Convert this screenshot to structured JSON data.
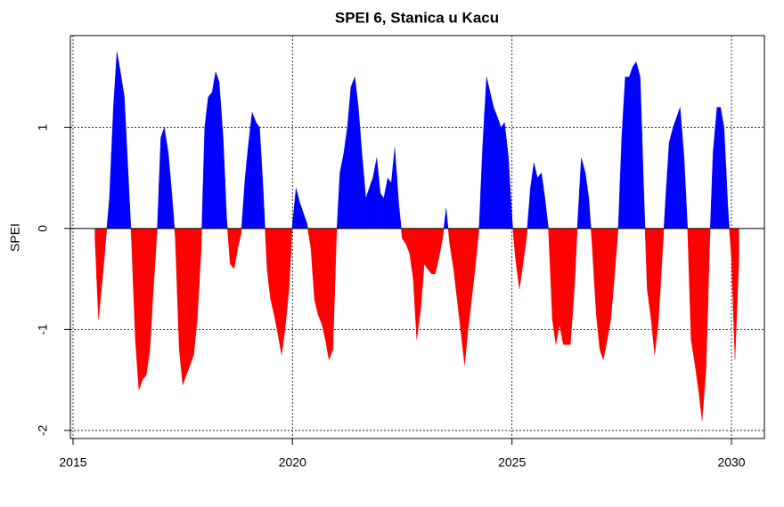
{
  "chart_data": {
    "type": "area",
    "title": "SPEI 6, Stanica u Kacu",
    "y_label": "SPEI",
    "positive_color": "#0000ff",
    "negative_color": "#ff0000",
    "baseline": 0,
    "grid": true,
    "xlim": [
      2014.94,
      2030.75
    ],
    "xticks": [
      2015,
      2020,
      2025,
      2030
    ],
    "ylim": [
      -2.08,
      1.91
    ],
    "yticks": [
      -2,
      -1,
      0,
      1
    ],
    "x": [
      2015.5,
      2015.58,
      2015.67,
      2015.75,
      2015.83,
      2015.92,
      2016.0,
      2016.08,
      2016.17,
      2016.25,
      2016.33,
      2016.42,
      2016.5,
      2016.58,
      2016.67,
      2016.75,
      2016.83,
      2016.92,
      2017.0,
      2017.08,
      2017.17,
      2017.25,
      2017.33,
      2017.42,
      2017.5,
      2017.58,
      2017.67,
      2017.75,
      2017.83,
      2017.92,
      2018.0,
      2018.08,
      2018.17,
      2018.25,
      2018.33,
      2018.42,
      2018.5,
      2018.58,
      2018.67,
      2018.75,
      2018.83,
      2018.92,
      2019.0,
      2019.08,
      2019.17,
      2019.25,
      2019.33,
      2019.42,
      2019.5,
      2019.58,
      2019.67,
      2019.75,
      2019.83,
      2019.92,
      2020.0,
      2020.08,
      2020.17,
      2020.25,
      2020.33,
      2020.42,
      2020.5,
      2020.58,
      2020.67,
      2020.75,
      2020.83,
      2020.92,
      2021.0,
      2021.08,
      2021.17,
      2021.25,
      2021.33,
      2021.42,
      2021.5,
      2021.58,
      2021.67,
      2021.75,
      2021.83,
      2021.92,
      2022.0,
      2022.08,
      2022.17,
      2022.25,
      2022.33,
      2022.42,
      2022.5,
      2022.58,
      2022.67,
      2022.75,
      2022.83,
      2022.92,
      2023.0,
      2023.08,
      2023.17,
      2023.25,
      2023.33,
      2023.42,
      2023.5,
      2023.58,
      2023.67,
      2023.75,
      2023.83,
      2023.92,
      2024.0,
      2024.08,
      2024.17,
      2024.25,
      2024.33,
      2024.42,
      2024.5,
      2024.58,
      2024.67,
      2024.75,
      2024.83,
      2024.92,
      2025.0,
      2025.08,
      2025.17,
      2025.25,
      2025.33,
      2025.42,
      2025.5,
      2025.58,
      2025.67,
      2025.75,
      2025.83,
      2025.92,
      2026.0,
      2026.08,
      2026.17,
      2026.25,
      2026.33,
      2026.42,
      2026.5,
      2026.58,
      2026.67,
      2026.75,
      2026.83,
      2026.92,
      2027.0,
      2027.08,
      2027.17,
      2027.25,
      2027.33,
      2027.42,
      2027.5,
      2027.58,
      2027.67,
      2027.75,
      2027.83,
      2027.92,
      2028.0,
      2028.08,
      2028.17,
      2028.25,
      2028.33,
      2028.42,
      2028.5,
      2028.58,
      2028.67,
      2028.75,
      2028.83,
      2028.92,
      2029.0,
      2029.08,
      2029.17,
      2029.25,
      2029.33,
      2029.42,
      2029.5,
      2029.58,
      2029.67,
      2029.75,
      2029.83,
      2029.92,
      2030.0,
      2030.08,
      2030.17
    ],
    "values": [
      -0.1,
      -0.9,
      -0.5,
      -0.1,
      0.3,
      1.2,
      1.75,
      1.55,
      1.3,
      0.6,
      -0.1,
      -1.1,
      -1.6,
      -1.5,
      -1.45,
      -1.2,
      -0.6,
      0.0,
      0.9,
      1.0,
      0.75,
      0.35,
      -0.1,
      -1.2,
      -1.55,
      -1.45,
      -1.35,
      -1.25,
      -0.9,
      -0.2,
      1.0,
      1.3,
      1.35,
      1.55,
      1.45,
      0.9,
      0.1,
      -0.35,
      -0.4,
      -0.2,
      -0.05,
      0.5,
      0.85,
      1.15,
      1.05,
      1.0,
      0.4,
      -0.4,
      -0.7,
      -0.85,
      -1.05,
      -1.25,
      -1.0,
      -0.6,
      0.05,
      0.4,
      0.25,
      0.15,
      0.05,
      -0.2,
      -0.7,
      -0.85,
      -0.95,
      -1.1,
      -1.3,
      -1.2,
      -0.1,
      0.55,
      0.75,
      1.0,
      1.4,
      1.5,
      1.2,
      0.75,
      0.3,
      0.4,
      0.5,
      0.7,
      0.35,
      0.3,
      0.5,
      0.45,
      0.8,
      0.25,
      -0.1,
      -0.15,
      -0.25,
      -0.5,
      -1.1,
      -0.8,
      -0.35,
      -0.4,
      -0.45,
      -0.45,
      -0.3,
      -0.1,
      0.2,
      -0.15,
      -0.4,
      -0.7,
      -1.0,
      -1.35,
      -1.0,
      -0.7,
      -0.35,
      0.0,
      0.8,
      1.5,
      1.35,
      1.2,
      1.1,
      1.0,
      1.05,
      0.7,
      0.1,
      -0.3,
      -0.6,
      -0.35,
      -0.1,
      0.4,
      0.65,
      0.5,
      0.55,
      0.3,
      0.0,
      -0.9,
      -1.15,
      -0.95,
      -1.15,
      -1.15,
      -1.15,
      -0.6,
      0.1,
      0.7,
      0.55,
      0.3,
      -0.2,
      -0.85,
      -1.2,
      -1.3,
      -1.1,
      -0.9,
      -0.5,
      0.0,
      0.9,
      1.5,
      1.5,
      1.6,
      1.65,
      1.5,
      0.4,
      -0.6,
      -0.9,
      -1.25,
      -0.95,
      -0.3,
      0.3,
      0.85,
      1.0,
      1.1,
      1.2,
      0.7,
      0.0,
      -1.1,
      -1.35,
      -1.6,
      -1.9,
      -1.4,
      -0.2,
      0.75,
      1.2,
      1.2,
      1.0,
      0.2,
      -0.3,
      -1.3,
      -0.3
    ]
  }
}
